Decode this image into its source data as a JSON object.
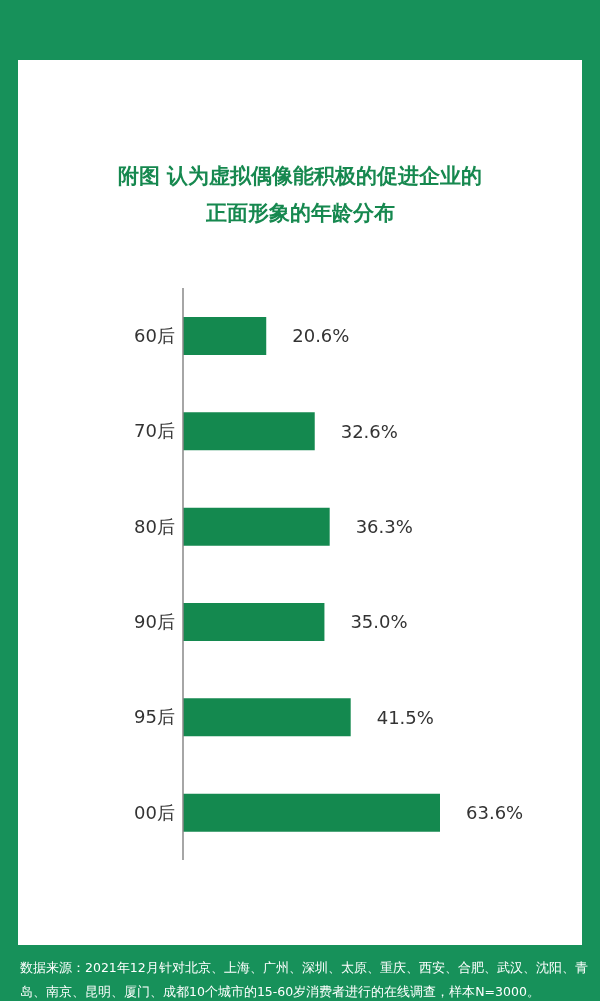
{
  "chart_data": {
    "type": "bar",
    "orientation": "horizontal",
    "title": "附图 认为虚拟偶像能积极的促进企业的正面形象的年龄分布",
    "categories": [
      "60后",
      "70后",
      "80后",
      "90后",
      "95后",
      "00后"
    ],
    "values": [
      20.6,
      32.6,
      36.3,
      35.0,
      41.5,
      63.6
    ],
    "value_labels": [
      "20.6%",
      "32.6%",
      "36.3%",
      "35.0%",
      "41.5%",
      "63.6%"
    ],
    "color": "#14894f",
    "grid": false,
    "annotations": [
      "数据来源：2021年12月针对北京、上海、广州、深圳、太原、重庆、西安、合肥、武汉、沈阳、青岛、南京、昆明、厦门、成都10个城市的15-60岁消费者进行的在线调查，样本N=3000。"
    ]
  }
}
